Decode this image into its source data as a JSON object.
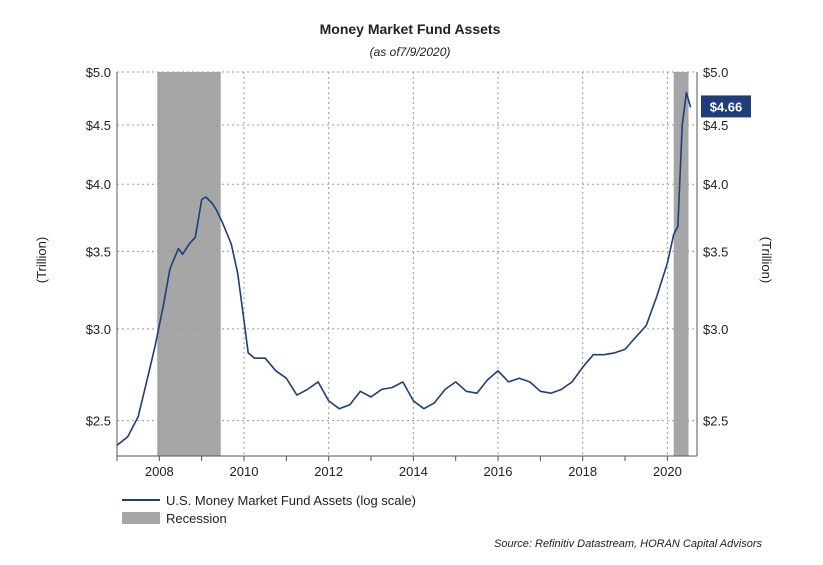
{
  "chart_data": {
    "type": "line",
    "title": "Money Market Fund Assets",
    "subtitle": "(as of7/9/2020)",
    "ylabel_left": "(Trillion)",
    "ylabel_right": "(Trillion)",
    "y_scale": "log",
    "ylim": [
      2.33,
      5.0
    ],
    "y_ticks": [
      2.5,
      3.0,
      3.5,
      4.0,
      4.5,
      5.0
    ],
    "y_tick_labels": [
      "$2.5",
      "$3.0",
      "$3.5",
      "$4.0",
      "$4.5",
      "$5.0"
    ],
    "xlim": [
      2007.0,
      2020.7
    ],
    "x_ticks": [
      2008,
      2010,
      2012,
      2014,
      2016,
      2018,
      2020
    ],
    "x_tick_labels": [
      "2008",
      "2010",
      "2012",
      "2014",
      "2016",
      "2018",
      "2020"
    ],
    "grid": true,
    "legend_position": "bottom-left",
    "series": [
      {
        "name": "U.S. Money Market Fund Assets (log scale)",
        "color": "#1f3d7a",
        "x": [
          2007.0,
          2007.25,
          2007.5,
          2007.75,
          2007.9,
          2008.1,
          2008.25,
          2008.45,
          2008.55,
          2008.7,
          2008.85,
          2009.0,
          2009.1,
          2009.25,
          2009.35,
          2009.5,
          2009.7,
          2009.85,
          2010.0,
          2010.1,
          2010.25,
          2010.5,
          2010.75,
          2011.0,
          2011.25,
          2011.5,
          2011.75,
          2012.0,
          2012.25,
          2012.5,
          2012.75,
          2013.0,
          2013.25,
          2013.5,
          2013.75,
          2014.0,
          2014.25,
          2014.5,
          2014.75,
          2015.0,
          2015.25,
          2015.5,
          2015.75,
          2016.0,
          2016.25,
          2016.5,
          2016.75,
          2017.0,
          2017.25,
          2017.5,
          2017.75,
          2018.0,
          2018.25,
          2018.5,
          2018.75,
          2019.0,
          2019.25,
          2019.5,
          2019.75,
          2020.0,
          2020.15,
          2020.25,
          2020.35,
          2020.45,
          2020.55
        ],
        "values": [
          2.38,
          2.42,
          2.52,
          2.75,
          2.9,
          3.15,
          3.38,
          3.52,
          3.48,
          3.55,
          3.6,
          3.88,
          3.9,
          3.85,
          3.8,
          3.7,
          3.55,
          3.35,
          3.05,
          2.86,
          2.83,
          2.83,
          2.76,
          2.72,
          2.63,
          2.66,
          2.7,
          2.6,
          2.56,
          2.58,
          2.65,
          2.62,
          2.66,
          2.67,
          2.7,
          2.6,
          2.56,
          2.59,
          2.66,
          2.7,
          2.65,
          2.64,
          2.71,
          2.76,
          2.7,
          2.72,
          2.7,
          2.65,
          2.64,
          2.66,
          2.7,
          2.78,
          2.85,
          2.85,
          2.86,
          2.88,
          2.95,
          3.02,
          3.2,
          3.42,
          3.62,
          3.68,
          4.5,
          4.8,
          4.66
        ]
      }
    ],
    "recessions": [
      {
        "name": "Recession",
        "start": 2007.95,
        "end": 2009.45,
        "color": "#a6a6a6"
      },
      {
        "name": "Recession",
        "start": 2020.15,
        "end": 2020.5,
        "color": "#a6a6a6"
      }
    ],
    "callout": {
      "label": "$4.66",
      "value": 4.66,
      "color": "#1f3d7a"
    },
    "legend": [
      {
        "label": "U.S. Money Market Fund Assets (log scale)",
        "kind": "line",
        "color": "#1f3d7a"
      },
      {
        "label": "Recession",
        "kind": "box",
        "color": "#a6a6a6"
      }
    ],
    "source": "Source: Refinitiv Datastream, HORAN Capital Advisors"
  }
}
